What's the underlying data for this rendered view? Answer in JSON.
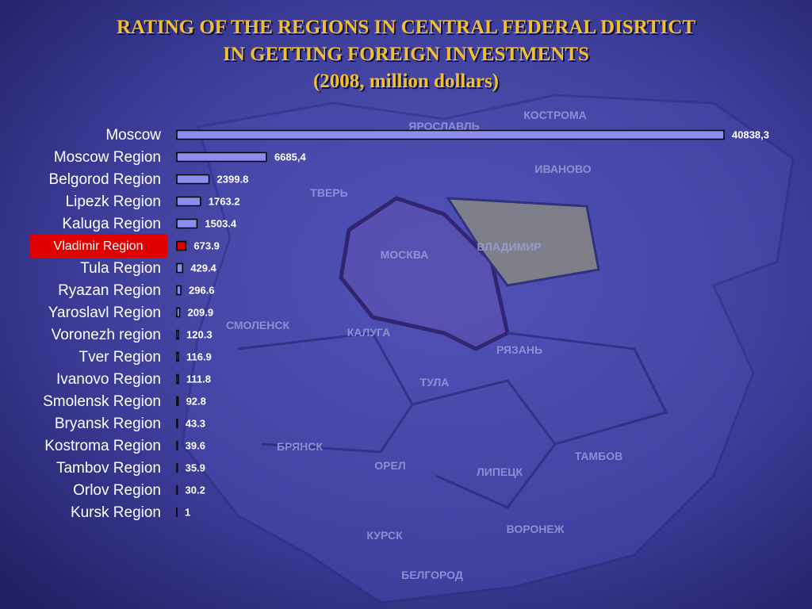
{
  "chart_data": {
    "type": "bar",
    "orientation": "horizontal",
    "title": [
      "RATING OF THE REGIONS IN CENTRAL FEDERAL DISRTICT",
      "IN GETTING FOREIGN INVESTMENTS",
      "(2008, million dollars)"
    ],
    "categories": [
      "Moscow",
      "Moscow Region",
      "Belgorod Region",
      "Lipezk Region",
      "Kaluga Region",
      "Vladimir Region",
      "Tula Region",
      "Ryazan Region",
      "Yaroslavl Region",
      "Voronezh region",
      "Tver Region",
      "Ivanovo Region",
      "Smolensk Region",
      "Bryansk Region",
      "Kostroma Region",
      "Tambov Region",
      "Orlov Region",
      "Kursk Region"
    ],
    "values": [
      40838.3,
      6685.4,
      2399.8,
      1763.2,
      1503.4,
      673.9,
      429.4,
      296.6,
      209.9,
      120.3,
      116.9,
      111.8,
      92.8,
      43.3,
      39.6,
      35.9,
      30.2,
      1
    ],
    "value_labels": [
      "40838,3",
      "6685,4",
      "2399.8",
      "1763.2",
      "1503.4",
      "673.9",
      "429.4",
      "296.6",
      "209.9",
      "120.3",
      "116.9",
      "111.8",
      "92.8",
      "43.3",
      "39.6",
      "35.9",
      "30.2",
      "1"
    ],
    "color": "#8c8cf0",
    "highlight": {
      "index": 5,
      "color": "#e00000"
    }
  },
  "background_map": {
    "labels": [
      "КОСТРОМА",
      "ЯРОСЛАВЛЬ",
      "ИВАНОВО",
      "ТВЕРЬ",
      "МОСКВА",
      "ВЛАДИМИР",
      "СМОЛЕНСК",
      "КАЛУГА",
      "РЯЗАНЬ",
      "ТУЛА",
      "БРЯНСК",
      "ОРЕЛ",
      "ЛИПЕЦК",
      "ТАМБОВ",
      "КУРСК",
      "ВОРОНЕЖ",
      "БЕЛГОРОД"
    ]
  }
}
